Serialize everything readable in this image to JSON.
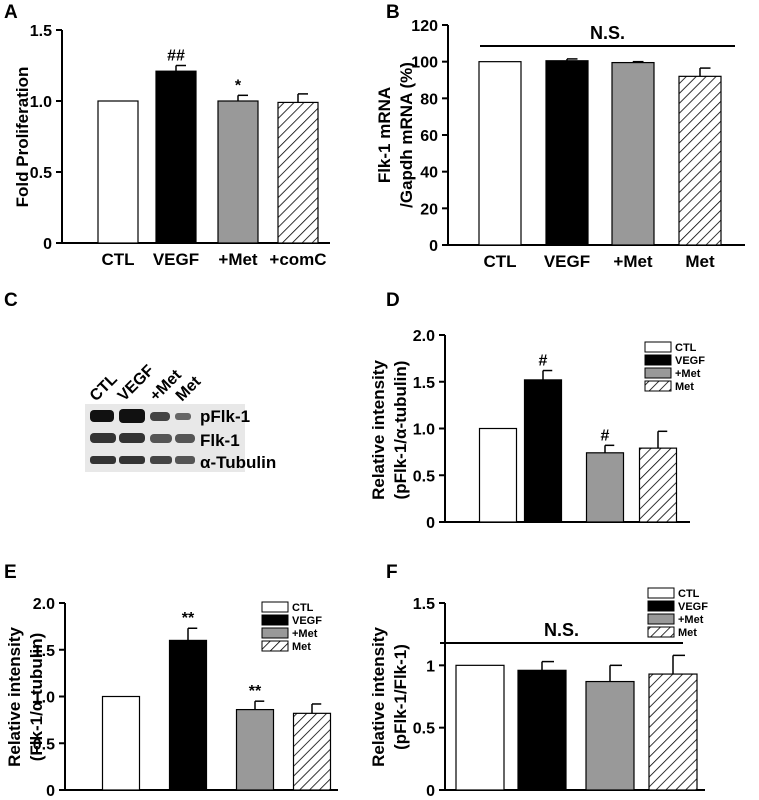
{
  "chart_data": [
    {
      "type": "bar",
      "panel": "A",
      "ylabel": [
        "Fold Proliferation"
      ],
      "categories": [
        "CTL",
        "VEGF",
        "+Met",
        "+comC"
      ],
      "x_tick_labels": true,
      "values": [
        1.0,
        1.21,
        1.0,
        0.99
      ],
      "errors": [
        0,
        0.04,
        0.04,
        0.06
      ],
      "annotations": [
        null,
        "##",
        "*",
        null
      ],
      "colors": [
        "#ffffff",
        "#000000",
        "#999999",
        "#ffffff"
      ],
      "patterns": [
        "solid",
        "solid",
        "solid",
        "hatch"
      ],
      "ylim": [
        0,
        1.5
      ],
      "yticks": [
        0,
        0.5,
        {
          "value": 1,
          "label": "1.0"
        },
        1.5
      ]
    },
    {
      "type": "bar",
      "panel": "B",
      "ylabel": [
        "Flk-1 mRNA",
        "/Gapdh mRNA (%)"
      ],
      "categories": [
        "CTL",
        "VEGF",
        "+Met",
        "Met"
      ],
      "x_tick_labels": true,
      "values": [
        100,
        100.5,
        99.5,
        92
      ],
      "errors": [
        0,
        1,
        0.5,
        4.5
      ],
      "bracket_label": "N.S.",
      "colors": [
        "#ffffff",
        "#000000",
        "#999999",
        "#ffffff"
      ],
      "patterns": [
        "solid",
        "solid",
        "solid",
        "hatch"
      ],
      "ylim": [
        0,
        120
      ],
      "yticks": [
        0,
        20,
        40,
        60,
        80,
        100,
        120
      ]
    },
    {
      "type": "bar",
      "panel": "D",
      "ylabel": [
        "Relative intensity",
        "(pFlk-1/α-tubulin)"
      ],
      "categories": [
        "CTL",
        "VEGF",
        "+Met",
        "Met"
      ],
      "legend": "upper right",
      "values": [
        1.0,
        1.52,
        0.74,
        0.79
      ],
      "errors": [
        0,
        0.1,
        0.08,
        0.18
      ],
      "annotations": [
        null,
        "#",
        "#",
        null
      ],
      "colors": [
        "#ffffff",
        "#000000",
        "#999999",
        "#ffffff"
      ],
      "patterns": [
        "solid",
        "solid",
        "solid",
        "hatch"
      ],
      "ylim": [
        0,
        2
      ],
      "yticks": [
        0,
        0.5,
        {
          "value": 1,
          "label": "1.0"
        },
        1.5,
        {
          "value": 2,
          "label": "2.0"
        }
      ]
    },
    {
      "type": "bar",
      "panel": "E",
      "ylabel": [
        "Relative intensity",
        "(Flk-1/α-tubulin)"
      ],
      "categories": [
        "CTL",
        "VEGF",
        "+Met",
        "Met"
      ],
      "legend": "upper right",
      "values": [
        1.0,
        1.6,
        0.86,
        0.82
      ],
      "errors": [
        0,
        0.13,
        0.09,
        0.1
      ],
      "annotations": [
        null,
        "**",
        "**",
        null
      ],
      "colors": [
        "#ffffff",
        "#000000",
        "#999999",
        "#ffffff"
      ],
      "patterns": [
        "solid",
        "solid",
        "solid",
        "hatch"
      ],
      "ylim": [
        0,
        2
      ],
      "yticks": [
        0,
        0.5,
        {
          "value": 1,
          "label": "1.0"
        },
        1.5,
        {
          "value": 2,
          "label": "2.0"
        }
      ]
    },
    {
      "type": "bar",
      "panel": "F",
      "ylabel": [
        "Relative intensity",
        "(pFlk-1/Flk-1)"
      ],
      "categories": [
        "CTL",
        "VEGF",
        "+Met",
        "Met"
      ],
      "legend": "upper right",
      "values": [
        1.0,
        0.96,
        0.87,
        0.93
      ],
      "errors": [
        0,
        0.07,
        0.13,
        0.15
      ],
      "bracket_label": "N.S.",
      "colors": [
        "#ffffff",
        "#000000",
        "#999999",
        "#ffffff"
      ],
      "patterns": [
        "solid",
        "solid",
        "solid",
        "hatch"
      ],
      "ylim": [
        0,
        1.5
      ],
      "yticks": [
        0,
        0.5,
        1,
        1.5
      ]
    }
  ],
  "blot": {
    "panel": "C",
    "lanes": [
      "CTL",
      "VEGF",
      "+Met",
      "Met"
    ],
    "bands": [
      "pFlk-1",
      "Flk-1",
      "α-Tubulin"
    ]
  }
}
